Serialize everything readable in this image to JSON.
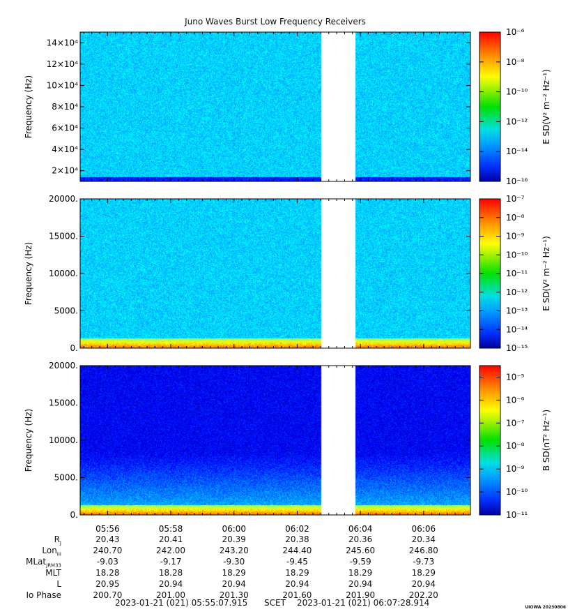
{
  "title": "Juno Waves Burst Low Frequency Receivers",
  "time_ticks": [
    "05:56",
    "05:58",
    "06:00",
    "06:02",
    "06:04",
    "06:06"
  ],
  "chart_data": [
    {
      "type": "heatmap",
      "name": "panel-1",
      "ylabel": "Frequency (Hz)",
      "y_tick_labels": [
        "2×10⁴",
        "4×10⁴",
        "6×10⁴",
        "8×10⁴",
        "10×10⁴",
        "12×10⁴",
        "14×10⁴"
      ],
      "y_ticks": [
        20000,
        40000,
        60000,
        80000,
        100000,
        120000,
        140000
      ],
      "ylim": [
        10000,
        150000
      ],
      "colorbar": {
        "label": "E SD(V² m⁻² Hz⁻¹)",
        "exponents": [
          -16,
          -14,
          -12,
          -10,
          -8,
          -6
        ],
        "range": [
          -16,
          -6
        ]
      },
      "background_level": 0.33,
      "data_gap": [
        "06:02:45",
        "06:03:50"
      ]
    },
    {
      "type": "heatmap",
      "name": "panel-2",
      "ylabel": "Frequency (Hz)",
      "y_tick_labels": [
        "0.",
        "5000.",
        "10000.",
        "15000.",
        "20000."
      ],
      "y_ticks": [
        0,
        5000,
        10000,
        15000,
        20000
      ],
      "ylim": [
        0,
        20000
      ],
      "colorbar": {
        "label": "E SD(V² m⁻² Hz⁻¹)",
        "exponents": [
          -15,
          -14,
          -13,
          -12,
          -11,
          -10,
          -9,
          -8,
          -7
        ],
        "range": [
          -15,
          -7
        ]
      },
      "background_level": 0.33,
      "data_gap": [
        "06:02:45",
        "06:03:50"
      ]
    },
    {
      "type": "heatmap",
      "name": "panel-3",
      "ylabel": "Frequency (Hz)",
      "y_tick_labels": [
        "0.",
        "5000.",
        "10000.",
        "15000.",
        "20000."
      ],
      "y_ticks": [
        0,
        5000,
        10000,
        15000,
        20000
      ],
      "ylim": [
        0,
        20000
      ],
      "colorbar": {
        "label": "B SD(nT² Hz⁻¹)",
        "exponents": [
          -11,
          -10,
          -9,
          -8,
          -7,
          -6,
          -5
        ],
        "range": [
          -11,
          -4.5
        ]
      },
      "background_level": 0.15,
      "data_gap": [
        "06:02:45",
        "06:03:50"
      ]
    }
  ],
  "ephemeris": {
    "labels": [
      "R",
      "Lon",
      "MLat",
      "MLT",
      "L",
      "Io Phase"
    ],
    "label_subs": [
      "J",
      "III",
      "JRM33",
      "",
      "",
      ""
    ],
    "columns": [
      [
        "20.43",
        "240.70",
        "-9.03",
        "18.28",
        "20.95",
        "200.70"
      ],
      [
        "20.41",
        "242.00",
        "-9.17",
        "18.28",
        "20.94",
        "201.00"
      ],
      [
        "20.39",
        "243.20",
        "-9.30",
        "18.29",
        "20.94",
        "201.30"
      ],
      [
        "20.38",
        "244.40",
        "-9.45",
        "18.29",
        "20.94",
        "201.60"
      ],
      [
        "20.36",
        "245.60",
        "-9.59",
        "18.29",
        "20.94",
        "201.90"
      ],
      [
        "20.34",
        "246.80",
        "-9.73",
        "18.29",
        "20.94",
        "202.20"
      ]
    ]
  },
  "footer": {
    "start": "2023-01-21 (021) 05:55:07.915",
    "scet": "SCET",
    "end": "2023-01-21 (021) 06:07:28.914"
  },
  "stamp": "UIOWA 20230806"
}
